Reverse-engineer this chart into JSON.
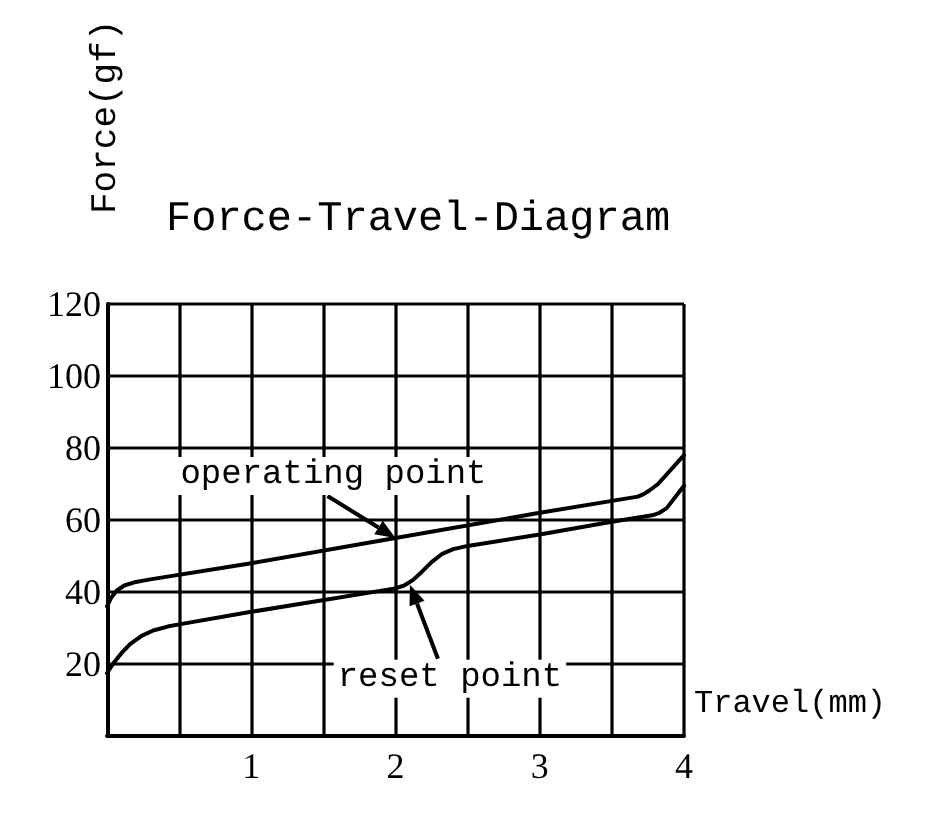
{
  "chart_data": {
    "type": "line",
    "title": "Force-Travel-Diagram",
    "xlabel": "Travel(mm)",
    "ylabel": "Force(gf)",
    "annotations": [
      {
        "text": "operating point",
        "x": 2,
        "y": 55
      },
      {
        "text": "reset point",
        "x": 2.1,
        "y": 42
      }
    ],
    "xlim": [
      0,
      4
    ],
    "xticks": [
      {
        "value": 0,
        "label": null
      },
      {
        "value": 0.5,
        "label": null
      },
      1,
      {
        "value": 1.5,
        "label": null
      },
      2,
      {
        "value": 2.5,
        "label": null
      },
      3,
      {
        "value": 3.5,
        "label": null
      },
      4
    ],
    "ylim": [
      0,
      120
    ],
    "yticks": [
      20,
      40,
      60,
      80,
      100,
      120
    ],
    "grid": true,
    "series": [
      {
        "color": "#000000",
        "x": [
          0,
          0.03,
          0.07,
          0.12,
          0.2,
          0.3,
          1,
          2,
          3,
          3.68,
          3.72,
          3.76,
          3.82,
          4
        ],
        "values": [
          36,
          38.5,
          40.5,
          41.8,
          42.8,
          43.5,
          48,
          55,
          62,
          66.5,
          67.2,
          68.2,
          70,
          78
        ]
      },
      {
        "color": "#000000",
        "x": [
          0,
          0.05,
          0.1,
          0.16,
          0.24,
          0.32,
          0.42,
          0.5,
          1,
          2,
          2.06,
          2.12,
          2.18,
          2.25,
          2.32,
          2.4,
          2.5,
          3,
          3.5,
          3.78,
          3.83,
          3.88,
          4
        ],
        "values": [
          17.5,
          20.5,
          23,
          25.5,
          27.8,
          29.3,
          30.4,
          31,
          34.5,
          41,
          41.8,
          43.3,
          45.5,
          48.3,
          50.5,
          51.9,
          52.8,
          56,
          59.5,
          61.3,
          62,
          63.3,
          69.5
        ]
      }
    ]
  }
}
